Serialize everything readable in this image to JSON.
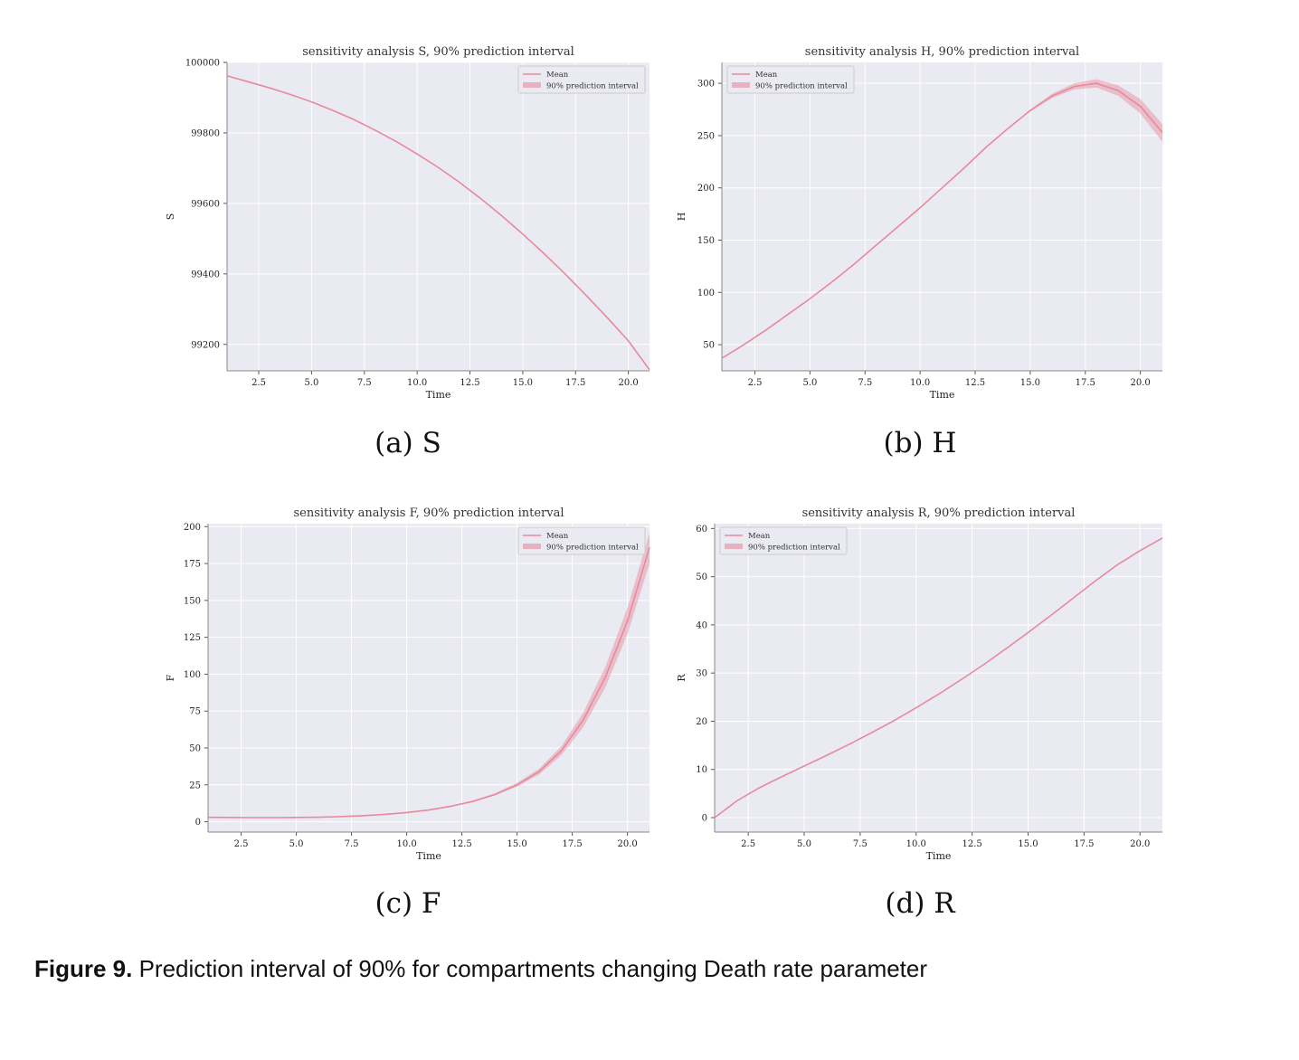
{
  "chart_data": [
    {
      "type": "line",
      "panel": "a",
      "title": "sensitivity analysis S, 90% prediction interval",
      "xlabel": "Time",
      "ylabel": "S",
      "xlim": [
        1,
        21
      ],
      "ylim": [
        99125,
        100000
      ],
      "xticks": [
        "2.5",
        "5.0",
        "7.5",
        "10.0",
        "12.5",
        "15.0",
        "17.5",
        "20.0"
      ],
      "yticks": [
        "100000",
        "99800",
        "99600",
        "99400",
        "99200"
      ],
      "legend": [
        "Mean",
        "90% prediction interval"
      ],
      "legend_position": "top-right",
      "grid": true,
      "color": "#e8899c",
      "x": [
        1,
        2,
        3,
        4,
        5,
        6,
        7,
        8,
        9,
        10,
        11,
        12,
        13,
        14,
        15,
        16,
        17,
        18,
        19,
        20,
        21
      ],
      "mean": [
        99962,
        99945,
        99928,
        99909,
        99888,
        99864,
        99838,
        99808,
        99776,
        99740,
        99702,
        99660,
        99614,
        99565,
        99513,
        99458,
        99400,
        99339,
        99276,
        99210,
        99128
      ],
      "lower": [
        99962,
        99945,
        99928,
        99909,
        99888,
        99864,
        99838,
        99808,
        99776,
        99740,
        99702,
        99660,
        99614,
        99565,
        99513,
        99458,
        99400,
        99339,
        99275,
        99208,
        99125
      ],
      "upper": [
        99962,
        99945,
        99928,
        99909,
        99888,
        99864,
        99838,
        99808,
        99776,
        99740,
        99702,
        99660,
        99614,
        99565,
        99513,
        99458,
        99400,
        99340,
        99277,
        99212,
        99131
      ],
      "caption": "(a) S"
    },
    {
      "type": "line",
      "panel": "b",
      "title": "sensitivity analysis H, 90% prediction interval",
      "xlabel": "Time",
      "ylabel": "H",
      "xlim": [
        1,
        21
      ],
      "ylim": [
        25,
        320
      ],
      "xticks": [
        "2.5",
        "5.0",
        "7.5",
        "10.0",
        "12.5",
        "15.0",
        "17.5",
        "20.0"
      ],
      "yticks": [
        "300",
        "250",
        "200",
        "150",
        "100",
        "50"
      ],
      "legend": [
        "Mean",
        "90% prediction interval"
      ],
      "legend_position": "top-left",
      "grid": true,
      "color": "#e8899c",
      "x": [
        1,
        2,
        3,
        4,
        5,
        6,
        7,
        8,
        9,
        10,
        11,
        12,
        13,
        14,
        15,
        16,
        17,
        18,
        19,
        20,
        21
      ],
      "mean": [
        37,
        50,
        64,
        79,
        94,
        110,
        127,
        145,
        163,
        181,
        200,
        219,
        239,
        257,
        274,
        288,
        297,
        300,
        293,
        278,
        253
      ],
      "lower": [
        37,
        50,
        64,
        79,
        94,
        110,
        127,
        145,
        163,
        181,
        200,
        219,
        239,
        257,
        273,
        286,
        294,
        296,
        288,
        271,
        244
      ],
      "upper": [
        37,
        50,
        64,
        79,
        94,
        110,
        127,
        145,
        163,
        181,
        200,
        219,
        239,
        257,
        275,
        290,
        300,
        304,
        298,
        285,
        261
      ],
      "caption": "(b) H"
    },
    {
      "type": "line",
      "panel": "c",
      "title": "sensitivity analysis F, 90% prediction interval",
      "xlabel": "Time",
      "ylabel": "F",
      "xlim": [
        1,
        21
      ],
      "ylim": [
        -7,
        202
      ],
      "xticks": [
        "2.5",
        "5.0",
        "7.5",
        "10.0",
        "12.5",
        "15.0",
        "17.5",
        "20.0"
      ],
      "yticks": [
        "200",
        "175",
        "150",
        "125",
        "100",
        "75",
        "50",
        "25",
        "0"
      ],
      "legend": [
        "Mean",
        "90% prediction interval"
      ],
      "legend_position": "top-right",
      "grid": true,
      "color": "#e8899c",
      "x": [
        1,
        2,
        3,
        4,
        5,
        6,
        7,
        8,
        9,
        10,
        11,
        12,
        13,
        14,
        15,
        16,
        17,
        18,
        19,
        20,
        21
      ],
      "mean": [
        3,
        2.9,
        2.8,
        2.8,
        2.9,
        3.1,
        3.5,
        4.1,
        5.0,
        6.2,
        8.0,
        10.5,
        13.8,
        18.5,
        25,
        34,
        48,
        69,
        98,
        136,
        186
      ],
      "lower": [
        3,
        2.9,
        2.8,
        2.8,
        2.9,
        3.1,
        3.5,
        4.1,
        5.0,
        6.1,
        7.8,
        10.2,
        13.4,
        17.8,
        23.8,
        32,
        45,
        64,
        91,
        127,
        175
      ],
      "upper": [
        3,
        2.9,
        2.8,
        2.8,
        2.9,
        3.1,
        3.5,
        4.1,
        5.0,
        6.3,
        8.2,
        10.8,
        14.3,
        19.2,
        26.3,
        36,
        51,
        74,
        105,
        145,
        196
      ],
      "caption": "(c) F"
    },
    {
      "type": "line",
      "panel": "d",
      "title": "sensitivity analysis R, 90% prediction interval",
      "xlabel": "Time",
      "ylabel": "R",
      "xlim": [
        1,
        21
      ],
      "ylim": [
        -3,
        61
      ],
      "xticks": [
        "2.5",
        "5.0",
        "7.5",
        "10.0",
        "12.5",
        "15.0",
        "17.5",
        "20.0"
      ],
      "yticks": [
        "60",
        "50",
        "40",
        "30",
        "20",
        "10",
        "0"
      ],
      "legend": [
        "Mean",
        "90% prediction interval"
      ],
      "legend_position": "top-left",
      "grid": true,
      "color": "#e8899c",
      "x": [
        1,
        2,
        3,
        4,
        5,
        6,
        7,
        8,
        9,
        10,
        11,
        12,
        13,
        14,
        15,
        16,
        17,
        18,
        19,
        20,
        21
      ],
      "mean": [
        0,
        3.5,
        6.2,
        8.5,
        10.7,
        12.9,
        15.2,
        17.6,
        20.1,
        22.8,
        25.6,
        28.6,
        31.7,
        35.0,
        38.4,
        41.9,
        45.5,
        49.1,
        52.5,
        55.4,
        58
      ],
      "lower": [
        0,
        3.5,
        6.2,
        8.5,
        10.7,
        12.9,
        15.2,
        17.6,
        20.1,
        22.8,
        25.6,
        28.6,
        31.7,
        35.0,
        38.4,
        41.9,
        45.5,
        49.1,
        52.5,
        55.4,
        58
      ],
      "upper": [
        0,
        3.5,
        6.2,
        8.5,
        10.7,
        12.9,
        15.2,
        17.6,
        20.1,
        22.8,
        25.6,
        28.6,
        31.7,
        35.0,
        38.4,
        41.9,
        45.5,
        49.1,
        52.5,
        55.4,
        58
      ],
      "caption": "(d) R"
    }
  ],
  "figure_caption": {
    "label": "Figure 9.",
    "text": " Prediction interval of 90% for compartments changing Death rate parameter"
  }
}
